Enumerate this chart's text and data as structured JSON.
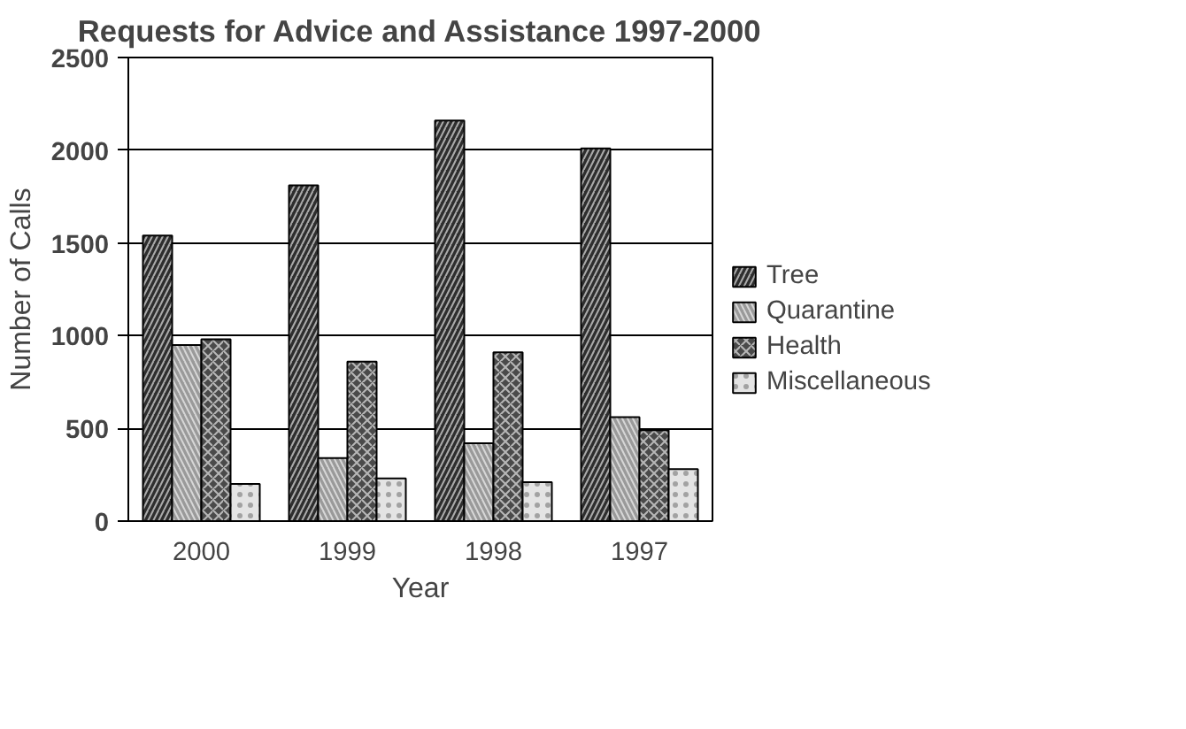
{
  "chart_data": {
    "type": "bar",
    "title": "Requests for Advice and Assistance 1997-2000",
    "xlabel": "Year",
    "ylabel": "Number of Calls",
    "categories": [
      "2000",
      "1999",
      "1998",
      "1997"
    ],
    "series": [
      {
        "name": "Tree",
        "color": "#2e2e2e",
        "values": [
          1540,
          1810,
          2160,
          2010
        ]
      },
      {
        "name": "Quarantine",
        "color": "#9a9a9a",
        "values": [
          950,
          340,
          420,
          560
        ]
      },
      {
        "name": "Health",
        "color": "#4a4a4a",
        "values": [
          980,
          860,
          910,
          490
        ]
      },
      {
        "name": "Miscellaneous",
        "color": "#e4e4e4",
        "values": [
          200,
          230,
          210,
          280
        ]
      }
    ],
    "ylim": [
      0,
      2500
    ],
    "yticks": [
      0,
      500,
      1000,
      1500,
      2000,
      2500
    ],
    "grid": "y",
    "legend": "right"
  }
}
